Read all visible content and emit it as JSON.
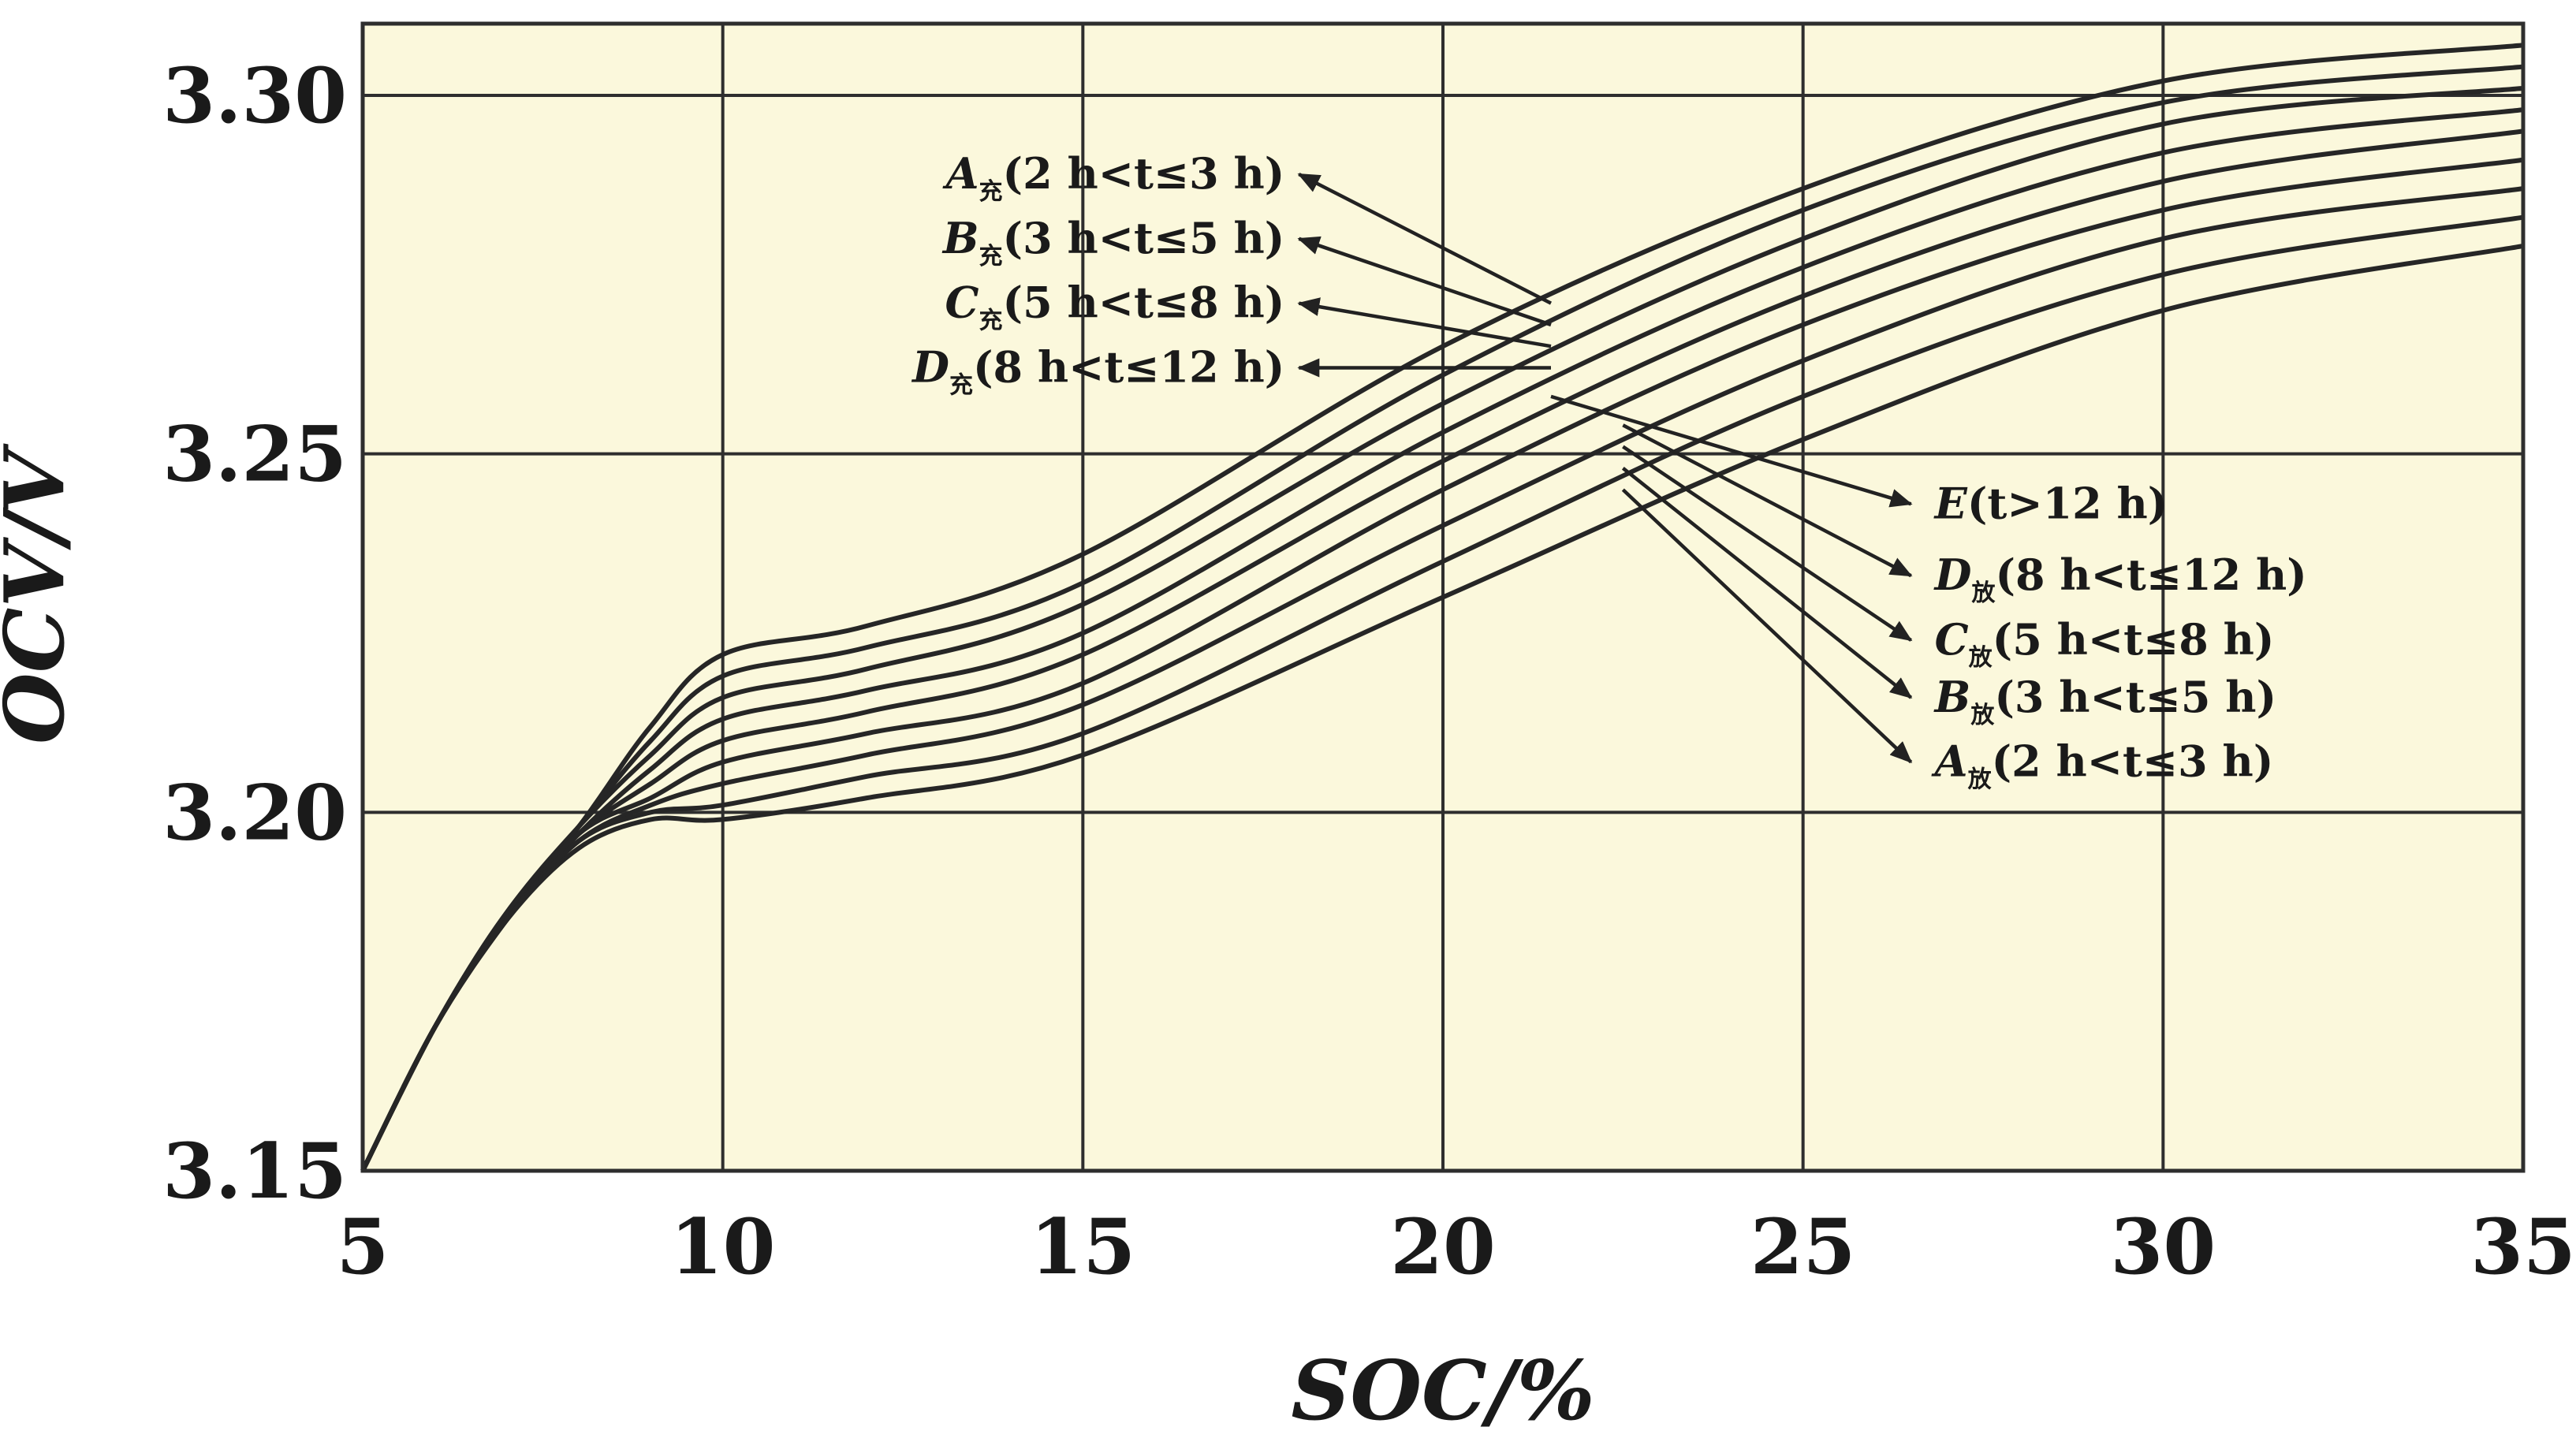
{
  "chart_data": {
    "type": "line",
    "xlabel": "SOC/%",
    "ylabel": "OCV/V",
    "xlim": [
      5,
      35
    ],
    "ylim": [
      3.15,
      3.31
    ],
    "x_ticks": [
      "5",
      "10",
      "15",
      "20",
      "25",
      "30",
      "35"
    ],
    "y_ticks": [
      "3.15",
      "3.20",
      "3.25",
      "3.30"
    ],
    "grid": true,
    "background": "#fbf8dc",
    "line_color": "#262626",
    "x": [
      5,
      6,
      7,
      8,
      9,
      10,
      12,
      15,
      20,
      25,
      30,
      35
    ],
    "series": [
      {
        "values": [
          3.15,
          3.17,
          3.186,
          3.198,
          3.212,
          3.222,
          3.226,
          3.236,
          3.265,
          3.287,
          3.302,
          3.307
        ]
      },
      {
        "values": [
          3.15,
          3.17,
          3.186,
          3.198,
          3.21,
          3.219,
          3.223,
          3.232,
          3.261,
          3.284,
          3.299,
          3.304
        ]
      },
      {
        "values": [
          3.15,
          3.17,
          3.186,
          3.198,
          3.208,
          3.216,
          3.22,
          3.229,
          3.257,
          3.28,
          3.296,
          3.301
        ]
      },
      {
        "values": [
          3.15,
          3.17,
          3.186,
          3.197,
          3.206,
          3.213,
          3.217,
          3.225,
          3.253,
          3.276,
          3.292,
          3.298
        ]
      },
      {
        "values": [
          3.15,
          3.17,
          3.186,
          3.197,
          3.204,
          3.21,
          3.214,
          3.222,
          3.249,
          3.272,
          3.288,
          3.295
        ]
      },
      {
        "values": [
          3.15,
          3.17,
          3.185,
          3.197,
          3.202,
          3.207,
          3.211,
          3.218,
          3.245,
          3.268,
          3.284,
          3.291
        ]
      },
      {
        "values": [
          3.15,
          3.17,
          3.185,
          3.196,
          3.201,
          3.204,
          3.208,
          3.215,
          3.24,
          3.263,
          3.28,
          3.287
        ]
      },
      {
        "values": [
          3.15,
          3.17,
          3.185,
          3.196,
          3.2,
          3.201,
          3.205,
          3.211,
          3.235,
          3.258,
          3.275,
          3.283
        ]
      },
      {
        "values": [
          3.15,
          3.17,
          3.185,
          3.195,
          3.199,
          3.199,
          3.202,
          3.208,
          3.23,
          3.252,
          3.27,
          3.279
        ]
      }
    ],
    "annotations": [
      {
        "italic": "A",
        "sub": "充",
        "text": "(2 h<t≤3 h)",
        "point": [
          18,
          3.289
        ],
        "target": [
          21.5,
          3.271
        ]
      },
      {
        "italic": "B",
        "sub": "充",
        "text": "(3 h<t≤5 h)",
        "point": [
          18,
          3.28
        ],
        "target": [
          21.5,
          3.268
        ]
      },
      {
        "italic": "C",
        "sub": "充",
        "text": "(5 h<t≤8 h)",
        "point": [
          18,
          3.271
        ],
        "target": [
          21.5,
          3.265
        ]
      },
      {
        "italic": "D",
        "sub": "充",
        "text": "(8 h<t≤12 h)",
        "point": [
          18,
          3.262
        ],
        "target": [
          21.5,
          3.262
        ]
      },
      {
        "italic": "E",
        "sub": "",
        "text": "(t>12 h)",
        "point": [
          26.5,
          3.243
        ],
        "target": [
          21.5,
          3.258
        ]
      },
      {
        "italic": "D",
        "sub": "放",
        "text": "(8 h<t≤12 h)",
        "point": [
          26.5,
          3.233
        ],
        "target": [
          22.5,
          3.254
        ]
      },
      {
        "italic": "C",
        "sub": "放",
        "text": "(5 h<t≤8 h)",
        "point": [
          26.5,
          3.224
        ],
        "target": [
          22.5,
          3.251
        ]
      },
      {
        "italic": "B",
        "sub": "放",
        "text": "(3 h<t≤5 h)",
        "point": [
          26.5,
          3.216
        ],
        "target": [
          22.5,
          3.248
        ]
      },
      {
        "italic": "A",
        "sub": "放",
        "text": "(2 h<t≤3 h)",
        "point": [
          26.5,
          3.207
        ],
        "target": [
          22.5,
          3.245
        ]
      }
    ]
  }
}
